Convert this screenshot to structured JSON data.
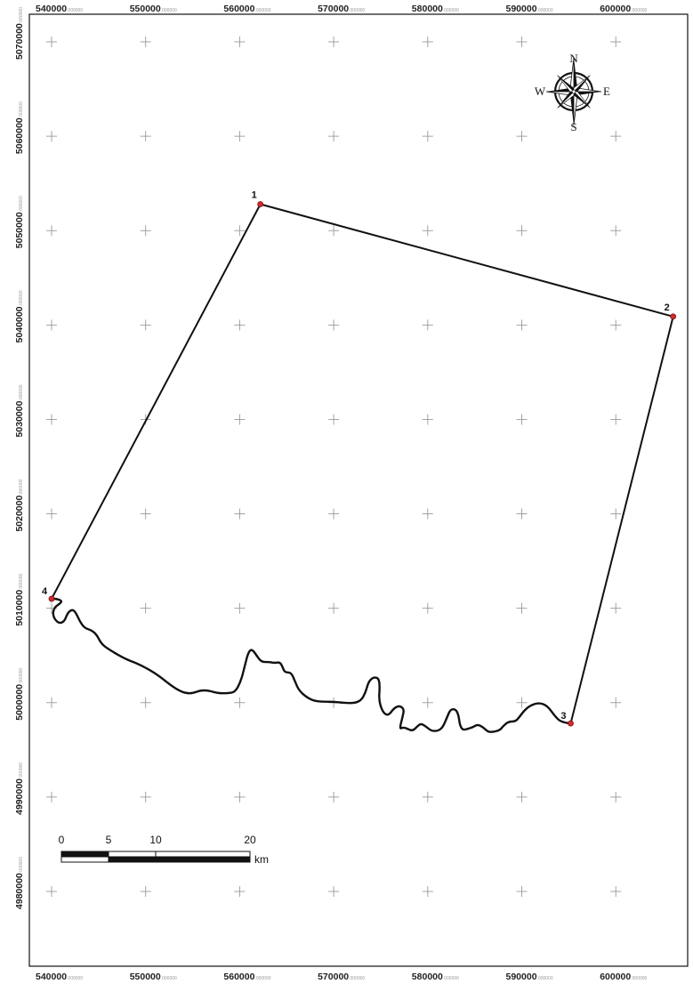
{
  "map": {
    "x_ticks": [
      {
        "value": 540000,
        "main": "540000",
        "decimals": ".000000"
      },
      {
        "value": 550000,
        "main": "550000",
        "decimals": ".000000"
      },
      {
        "value": 560000,
        "main": "560000",
        "decimals": ".000000"
      },
      {
        "value": 570000,
        "main": "570000",
        "decimals": ".000000"
      },
      {
        "value": 580000,
        "main": "580000",
        "decimals": ".000000"
      },
      {
        "value": 590000,
        "main": "590000",
        "decimals": ".000000"
      },
      {
        "value": 600000,
        "main": "600000",
        "decimals": ".000000"
      }
    ],
    "y_ticks": [
      {
        "value": 5070000,
        "main": "5070000",
        "decimals": ".000000"
      },
      {
        "value": 5060000,
        "main": "5060000",
        "decimals": ".000000"
      },
      {
        "value": 5050000,
        "main": "5050000",
        "decimals": ".000000"
      },
      {
        "value": 5040000,
        "main": "5040000",
        "decimals": ".000000"
      },
      {
        "value": 5030000,
        "main": "5030000",
        "decimals": ".000000"
      },
      {
        "value": 5020000,
        "main": "5020000",
        "decimals": ".000000"
      },
      {
        "value": 5010000,
        "main": "5010000",
        "decimals": ".000000"
      },
      {
        "value": 5000000,
        "main": "5000000",
        "decimals": ".000000"
      },
      {
        "value": 4990000,
        "main": "4990000",
        "decimals": ".000000"
      },
      {
        "value": 4980000,
        "main": "4980000",
        "decimals": ".000000"
      }
    ],
    "vertices": [
      {
        "label": "1",
        "x": 562200,
        "y": 5052800
      },
      {
        "label": "2",
        "x": 606100,
        "y": 5040900
      },
      {
        "label": "3",
        "x": 595200,
        "y": 4997800
      },
      {
        "label": "4",
        "x": 540000,
        "y": 5011000
      }
    ],
    "river": [
      [
        595200,
        4997800
      ],
      [
        594200,
        4997900
      ],
      [
        593500,
        4998600
      ],
      [
        592700,
        4999700
      ],
      [
        591800,
        5000000
      ],
      [
        590900,
        4999700
      ],
      [
        590200,
        4999100
      ],
      [
        589700,
        4998400
      ],
      [
        589300,
        4998000
      ],
      [
        588600,
        4998000
      ],
      [
        588000,
        4997500
      ],
      [
        587700,
        4997100
      ],
      [
        587000,
        4996900
      ],
      [
        586400,
        4996900
      ],
      [
        585900,
        4997400
      ],
      [
        585300,
        4997700
      ],
      [
        584800,
        4997400
      ],
      [
        584200,
        4997200
      ],
      [
        583700,
        4997100
      ],
      [
        583400,
        4997700
      ],
      [
        583300,
        4998600
      ],
      [
        583000,
        4999300
      ],
      [
        582400,
        4999300
      ],
      [
        582000,
        4998300
      ],
      [
        581600,
        4997400
      ],
      [
        581100,
        4997000
      ],
      [
        580400,
        4997000
      ],
      [
        579900,
        4997400
      ],
      [
        579300,
        4997800
      ],
      [
        578900,
        4997500
      ],
      [
        578400,
        4997000
      ],
      [
        577900,
        4997200
      ],
      [
        577400,
        4997400
      ],
      [
        577000,
        4997200
      ],
      [
        577300,
        4998400
      ],
      [
        577500,
        4999300
      ],
      [
        577000,
        4999700
      ],
      [
        576400,
        4999400
      ],
      [
        575800,
        4998600
      ],
      [
        575200,
        4999000
      ],
      [
        574800,
        5000300
      ],
      [
        574900,
        5001600
      ],
      [
        574800,
        5002600
      ],
      [
        574200,
        5002700
      ],
      [
        573700,
        5002200
      ],
      [
        573400,
        5001100
      ],
      [
        572900,
        5000200
      ],
      [
        572000,
        4999900
      ],
      [
        570000,
        5000100
      ],
      [
        568200,
        5000100
      ],
      [
        567200,
        5000500
      ],
      [
        566300,
        5001300
      ],
      [
        565900,
        5002200
      ],
      [
        565500,
        5003200
      ],
      [
        564800,
        5003200
      ],
      [
        564600,
        5003700
      ],
      [
        564300,
        5004300
      ],
      [
        563700,
        5004200
      ],
      [
        563200,
        5004300
      ],
      [
        562300,
        5004300
      ],
      [
        561800,
        5005000
      ],
      [
        561300,
        5005700
      ],
      [
        560900,
        5005300
      ],
      [
        560500,
        5003700
      ],
      [
        560100,
        5002200
      ],
      [
        559500,
        5001100
      ],
      [
        558700,
        5001000
      ],
      [
        557800,
        5001000
      ],
      [
        557300,
        5001100
      ],
      [
        556600,
        5001300
      ],
      [
        555800,
        5001300
      ],
      [
        555000,
        5001000
      ],
      [
        554300,
        5001000
      ],
      [
        553500,
        5001300
      ],
      [
        552600,
        5001900
      ],
      [
        551600,
        5002700
      ],
      [
        550400,
        5003500
      ],
      [
        549000,
        5004200
      ],
      [
        547900,
        5004600
      ],
      [
        546300,
        5005500
      ],
      [
        545300,
        5006200
      ],
      [
        544800,
        5007200
      ],
      [
        544200,
        5007700
      ],
      [
        543500,
        5007900
      ],
      [
        543000,
        5008600
      ],
      [
        542600,
        5009500
      ],
      [
        542200,
        5009900
      ],
      [
        541700,
        5009500
      ],
      [
        541400,
        5008700
      ],
      [
        541000,
        5008400
      ],
      [
        540500,
        5008600
      ],
      [
        540100,
        5009300
      ],
      [
        540300,
        5010100
      ],
      [
        540900,
        5010500
      ],
      [
        541100,
        5010800
      ],
      [
        540500,
        5011000
      ],
      [
        540000,
        5011000
      ]
    ],
    "scale_bar": {
      "labels": [
        "0",
        "5",
        "10",
        "20"
      ],
      "unit": "km"
    },
    "north_arrow": {
      "n": "N",
      "s": "S",
      "e": "E",
      "w": "W"
    },
    "colors": {
      "boundary": "#111111",
      "vertex_fill": "#d42a2a",
      "grid_cross": "#999999",
      "frame": "#111111"
    }
  }
}
